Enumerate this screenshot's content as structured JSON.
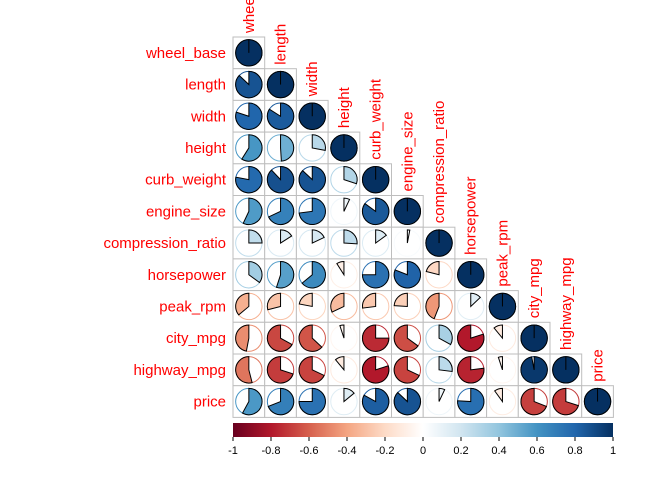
{
  "chart_data": {
    "type": "heatmap",
    "style": "correlation-pie-lower-triangle",
    "variables": [
      "wheel_base",
      "length",
      "width",
      "height",
      "curb_weight",
      "engine_size",
      "compression_ratio",
      "horsepower",
      "peak_rpm",
      "city_mpg",
      "highway_mpg",
      "price"
    ],
    "matrix": [
      [
        1.0,
        0.87,
        0.8,
        0.59,
        0.78,
        0.57,
        0.25,
        0.35,
        -0.36,
        -0.47,
        -0.54,
        0.58
      ],
      [
        0.87,
        1.0,
        0.84,
        0.49,
        0.88,
        0.68,
        0.16,
        0.55,
        -0.29,
        -0.67,
        -0.7,
        0.69
      ],
      [
        0.8,
        0.84,
        1.0,
        0.28,
        0.87,
        0.73,
        0.18,
        0.64,
        -0.22,
        -0.63,
        -0.68,
        0.75
      ],
      [
        0.59,
        0.49,
        0.28,
        1.0,
        0.3,
        0.07,
        0.26,
        -0.09,
        -0.32,
        -0.05,
        -0.11,
        0.14
      ],
      [
        0.78,
        0.88,
        0.87,
        0.3,
        1.0,
        0.85,
        0.15,
        0.75,
        -0.27,
        -0.75,
        -0.8,
        0.83
      ],
      [
        0.57,
        0.68,
        0.73,
        0.07,
        0.85,
        1.0,
        0.03,
        0.81,
        -0.24,
        -0.65,
        -0.68,
        0.87
      ],
      [
        0.25,
        0.16,
        0.18,
        0.26,
        0.15,
        0.03,
        1.0,
        -0.21,
        -0.44,
        0.33,
        0.27,
        0.07
      ],
      [
        0.35,
        0.55,
        0.64,
        -0.09,
        0.75,
        0.81,
        -0.21,
        1.0,
        0.13,
        -0.8,
        -0.77,
        0.76
      ],
      [
        -0.36,
        -0.29,
        -0.22,
        -0.32,
        -0.27,
        -0.24,
        -0.44,
        0.13,
        1.0,
        -0.11,
        -0.05,
        -0.1
      ],
      [
        -0.47,
        -0.67,
        -0.63,
        -0.05,
        -0.75,
        -0.65,
        0.33,
        -0.8,
        -0.11,
        1.0,
        0.97,
        -0.69
      ],
      [
        -0.54,
        -0.7,
        -0.68,
        -0.11,
        -0.8,
        -0.68,
        0.27,
        -0.77,
        -0.05,
        0.97,
        1.0,
        -0.7
      ],
      [
        0.58,
        0.69,
        0.75,
        0.14,
        0.83,
        0.87,
        0.07,
        0.76,
        -0.1,
        -0.69,
        -0.7,
        1.0
      ]
    ],
    "colorbar": {
      "min": -1,
      "max": 1,
      "ticks": [
        "-1",
        "-0.8",
        "-0.6",
        "-0.4",
        "-0.2",
        "0",
        "0.2",
        "0.4",
        "0.6",
        "0.8",
        "1"
      ],
      "colors": [
        "#67001F",
        "#B2182B",
        "#D6604D",
        "#F4A582",
        "#FDDBC7",
        "#FFFFFF",
        "#D1E5F0",
        "#92C5DE",
        "#4393C3",
        "#2166AC",
        "#053061"
      ]
    },
    "label_color": "#FF0000"
  }
}
